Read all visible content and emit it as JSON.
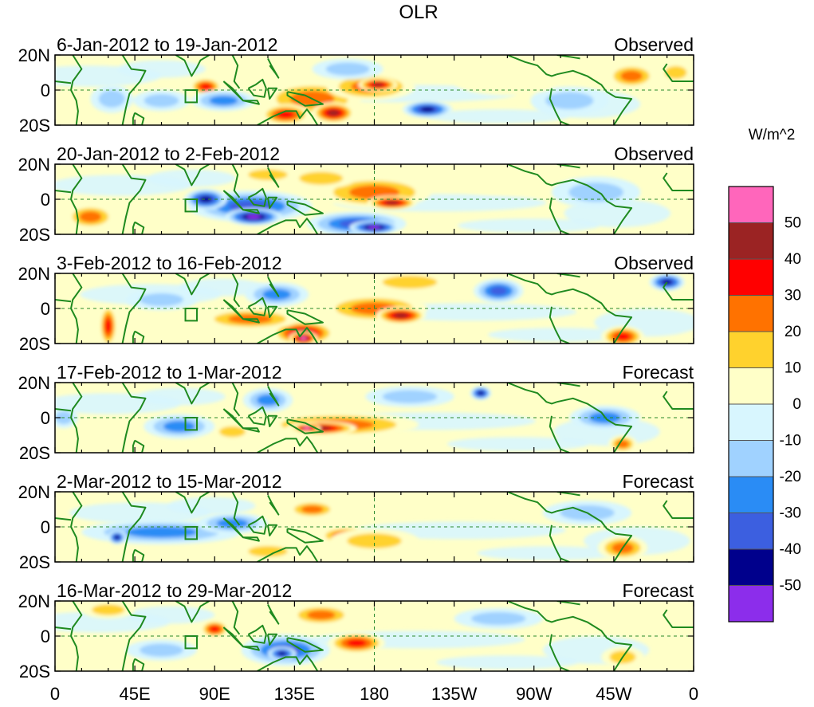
{
  "chart_data": {
    "type": "heatmap",
    "title": "OLR",
    "units": "W/m^2",
    "x_ticks": [
      "0",
      "45E",
      "90E",
      "135E",
      "180",
      "135W",
      "90W",
      "45W",
      "0"
    ],
    "y_ticks": [
      "20N",
      "0",
      "20S"
    ],
    "lon_range": [
      0,
      360
    ],
    "lat_range": [
      -20,
      20
    ],
    "colorbar": {
      "levels": [
        "50",
        "40",
        "30",
        "20",
        "10",
        "0",
        "-10",
        "-20",
        "-30",
        "-40",
        "-50"
      ],
      "colors": [
        "#ff66bb",
        "#9b2323",
        "#ff0000",
        "#ff7200",
        "#ffd22d",
        "#ffffc8",
        "#d8f6fe",
        "#a0d2ff",
        "#2a8cf5",
        "#3c5fe0",
        "#00008c",
        "#8c2deb"
      ]
    },
    "panels": [
      {
        "period": "6-Jan-2012 to 19-Jan-2012",
        "kind": "Observed",
        "anomalies": [
          {
            "lon": 85,
            "lat": 2,
            "rlon": 9,
            "rlat": 5,
            "value": 30
          },
          {
            "lon": 32,
            "lat": -5,
            "rlon": 12,
            "rlat": 8,
            "value": -15
          },
          {
            "lon": 60,
            "lat": -6,
            "rlon": 16,
            "rlat": 6,
            "value": -15
          },
          {
            "lon": 95,
            "lat": -6,
            "rlon": 18,
            "rlat": 6,
            "value": -20
          },
          {
            "lon": 145,
            "lat": -5,
            "rlon": 28,
            "rlat": 10,
            "value": 25
          },
          {
            "lon": 130,
            "lat": -14,
            "rlon": 14,
            "rlat": 6,
            "value": 35
          },
          {
            "lon": 157,
            "lat": -13,
            "rlon": 12,
            "rlat": 6,
            "value": 40
          },
          {
            "lon": 178,
            "lat": 2,
            "rlon": 25,
            "rlat": 8,
            "value": 25
          },
          {
            "lon": 182,
            "lat": 3,
            "rlon": 11,
            "rlat": 4,
            "value": 45
          },
          {
            "lon": 210,
            "lat": -11,
            "rlon": 14,
            "rlat": 5,
            "value": -40
          },
          {
            "lon": 165,
            "lat": 12,
            "rlon": 20,
            "rlat": 6,
            "value": -15
          },
          {
            "lon": 325,
            "lat": 8,
            "rlon": 14,
            "rlat": 7,
            "value": 20
          },
          {
            "lon": 350,
            "lat": 10,
            "rlon": 10,
            "rlat": 6,
            "value": 15
          },
          {
            "lon": 290,
            "lat": -6,
            "rlon": 22,
            "rlat": 8,
            "value": -15
          },
          {
            "lon": 255,
            "lat": 5,
            "rlon": 30,
            "rlat": 8,
            "value": 8
          }
        ]
      },
      {
        "period": "20-Jan-2012 to 2-Feb-2012",
        "kind": "Observed",
        "anomalies": [
          {
            "lon": 110,
            "lat": -4,
            "rlon": 35,
            "rlat": 9,
            "value": -30
          },
          {
            "lon": 112,
            "lat": -10,
            "rlon": 16,
            "rlat": 5,
            "value": -50
          },
          {
            "lon": 85,
            "lat": 0,
            "rlon": 12,
            "rlat": 6,
            "value": -40
          },
          {
            "lon": 170,
            "lat": -14,
            "rlon": 28,
            "rlat": 7,
            "value": -35
          },
          {
            "lon": 180,
            "lat": -16,
            "rlon": 14,
            "rlat": 4,
            "value": -50
          },
          {
            "lon": 180,
            "lat": 4,
            "rlon": 32,
            "rlat": 9,
            "value": 25
          },
          {
            "lon": 190,
            "lat": -2,
            "rlon": 14,
            "rlat": 4,
            "value": 45
          },
          {
            "lon": 150,
            "lat": 12,
            "rlon": 20,
            "rlat": 6,
            "value": 15
          },
          {
            "lon": 20,
            "lat": -10,
            "rlon": 14,
            "rlat": 7,
            "value": 25
          },
          {
            "lon": 120,
            "lat": 14,
            "rlon": 18,
            "rlat": 5,
            "value": 15
          },
          {
            "lon": 305,
            "lat": 4,
            "rlon": 25,
            "rlat": 9,
            "value": -15
          },
          {
            "lon": 250,
            "lat": 10,
            "rlon": 30,
            "rlat": 7,
            "value": 8
          }
        ]
      },
      {
        "period": "3-Feb-2012 to 16-Feb-2012",
        "kind": "Observed",
        "anomalies": [
          {
            "lon": 30,
            "lat": -10,
            "rlon": 5,
            "rlat": 12,
            "value": 30
          },
          {
            "lon": 140,
            "lat": -14,
            "rlon": 18,
            "rlat": 7,
            "value": 45
          },
          {
            "lon": 140,
            "lat": -17,
            "rlon": 8,
            "rlat": 4,
            "value": 55
          },
          {
            "lon": 110,
            "lat": -6,
            "rlon": 28,
            "rlat": 6,
            "value": 25
          },
          {
            "lon": 180,
            "lat": 0,
            "rlon": 30,
            "rlat": 8,
            "value": 25
          },
          {
            "lon": 195,
            "lat": -4,
            "rlon": 14,
            "rlat": 5,
            "value": 40
          },
          {
            "lon": 125,
            "lat": 8,
            "rlon": 18,
            "rlat": 7,
            "value": -25
          },
          {
            "lon": 250,
            "lat": 10,
            "rlon": 14,
            "rlat": 7,
            "value": -35
          },
          {
            "lon": 345,
            "lat": 15,
            "rlon": 10,
            "rlat": 5,
            "value": -40
          },
          {
            "lon": 320,
            "lat": -16,
            "rlon": 12,
            "rlat": 6,
            "value": 30
          },
          {
            "lon": 200,
            "lat": 15,
            "rlon": 25,
            "rlat": 6,
            "value": 15
          },
          {
            "lon": 60,
            "lat": 5,
            "rlon": 20,
            "rlat": 6,
            "value": -10
          }
        ]
      },
      {
        "period": "17-Feb-2012 to 1-Mar-2012",
        "kind": "Forecast",
        "anomalies": [
          {
            "lon": 160,
            "lat": -4,
            "rlon": 45,
            "rlat": 7,
            "value": 25
          },
          {
            "lon": 150,
            "lat": -6,
            "rlon": 20,
            "rlat": 4,
            "value": 45
          },
          {
            "lon": 142,
            "lat": -6,
            "rlon": 8,
            "rlat": 2.5,
            "value": 55
          },
          {
            "lon": 120,
            "lat": 10,
            "rlon": 14,
            "rlat": 7,
            "value": -25
          },
          {
            "lon": 100,
            "lat": -8,
            "rlon": 12,
            "rlat": 5,
            "value": 15
          },
          {
            "lon": 240,
            "lat": 14,
            "rlon": 6,
            "rlat": 4,
            "value": -45
          },
          {
            "lon": 70,
            "lat": -5,
            "rlon": 20,
            "rlat": 7,
            "value": -20
          },
          {
            "lon": 310,
            "lat": 0,
            "rlon": 20,
            "rlat": 7,
            "value": -20
          },
          {
            "lon": 320,
            "lat": -15,
            "rlon": 8,
            "rlat": 5,
            "value": 25
          },
          {
            "lon": 200,
            "lat": 12,
            "rlon": 25,
            "rlat": 6,
            "value": -15
          },
          {
            "lon": 5,
            "lat": 0,
            "rlon": 8,
            "rlat": 6,
            "value": -15
          }
        ]
      },
      {
        "period": "2-Mar-2012 to 15-Mar-2012",
        "kind": "Forecast",
        "anomalies": [
          {
            "lon": 60,
            "lat": -3,
            "rlon": 45,
            "rlat": 7,
            "value": -20
          },
          {
            "lon": 35,
            "lat": -6,
            "rlon": 5,
            "rlat": 4,
            "value": -40
          },
          {
            "lon": 100,
            "lat": 2,
            "rlon": 20,
            "rlat": 6,
            "value": -25
          },
          {
            "lon": 165,
            "lat": -5,
            "rlon": 16,
            "rlat": 5,
            "value": 35
          },
          {
            "lon": 145,
            "lat": 10,
            "rlon": 14,
            "rlat": 5,
            "value": 20
          },
          {
            "lon": 180,
            "lat": -8,
            "rlon": 25,
            "rlat": 7,
            "value": 10
          },
          {
            "lon": 320,
            "lat": -12,
            "rlon": 14,
            "rlat": 7,
            "value": 25
          },
          {
            "lon": 300,
            "lat": 8,
            "rlon": 25,
            "rlat": 7,
            "value": -15
          },
          {
            "lon": 120,
            "lat": -14,
            "rlon": 18,
            "rlat": 5,
            "value": 10
          }
        ]
      },
      {
        "period": "16-Mar-2012 to 29-Mar-2012",
        "kind": "Forecast",
        "anomalies": [
          {
            "lon": 90,
            "lat": 4,
            "rlon": 8,
            "rlat": 5,
            "value": 35
          },
          {
            "lon": 130,
            "lat": -8,
            "rlon": 25,
            "rlat": 9,
            "value": -30
          },
          {
            "lon": 128,
            "lat": -10,
            "rlon": 8,
            "rlat": 4,
            "value": -45
          },
          {
            "lon": 170,
            "lat": -4,
            "rlon": 16,
            "rlat": 6,
            "value": 35
          },
          {
            "lon": 150,
            "lat": 12,
            "rlon": 18,
            "rlat": 6,
            "value": 20
          },
          {
            "lon": 60,
            "lat": -8,
            "rlon": 20,
            "rlat": 6,
            "value": -15
          },
          {
            "lon": 320,
            "lat": -12,
            "rlon": 12,
            "rlat": 6,
            "value": 15
          },
          {
            "lon": 30,
            "lat": 15,
            "rlon": 15,
            "rlat": 5,
            "value": 15
          },
          {
            "lon": 250,
            "lat": 10,
            "rlon": 25,
            "rlat": 6,
            "value": -10
          }
        ]
      }
    ]
  }
}
